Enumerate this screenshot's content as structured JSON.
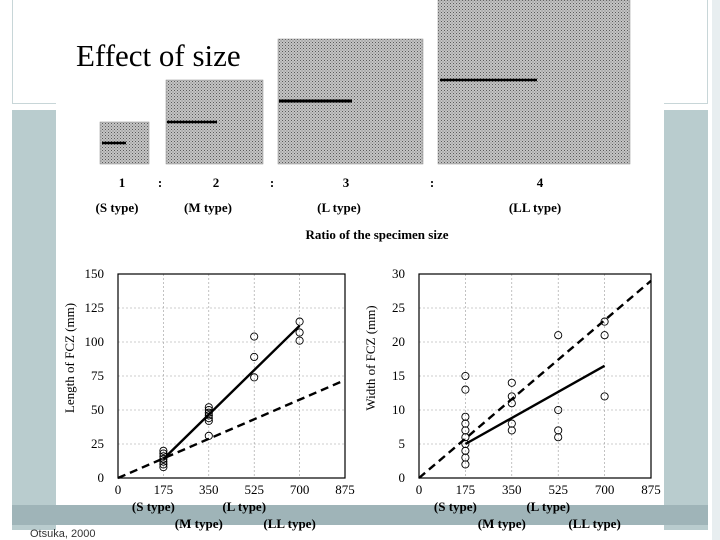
{
  "slide": {
    "title": "Effect of size",
    "credit": "Otsuka, 2000"
  },
  "specimens": {
    "ratios": [
      "1",
      "2",
      "3",
      "4"
    ],
    "separator": ":",
    "types": [
      "(S type)",
      "(M type)",
      "(L type)",
      "(LL type)"
    ],
    "caption": "Ratio of the specimen size"
  },
  "chart_data": [
    {
      "type": "scatter",
      "ylabel": "Length of FCZ (mm)",
      "xlim": [
        0,
        875
      ],
      "ylim": [
        0,
        150
      ],
      "x_ticks": [
        "0",
        "175",
        "350",
        "525",
        "700",
        "875"
      ],
      "y_ticks": [
        "0",
        "25",
        "50",
        "75",
        "100",
        "125",
        "150"
      ],
      "type_labels": [
        "(S type)",
        "(L type)",
        "(M type)",
        "(LL type)"
      ],
      "points": [
        [
          175,
          8
        ],
        [
          175,
          10
        ],
        [
          175,
          12
        ],
        [
          175,
          14
        ],
        [
          175,
          16
        ],
        [
          175,
          18
        ],
        [
          175,
          20
        ],
        [
          350,
          31
        ],
        [
          350,
          42
        ],
        [
          350,
          44
        ],
        [
          350,
          46
        ],
        [
          350,
          48
        ],
        [
          350,
          50
        ],
        [
          350,
          52
        ],
        [
          525,
          74
        ],
        [
          525,
          89
        ],
        [
          525,
          104
        ],
        [
          700,
          101
        ],
        [
          700,
          107
        ],
        [
          700,
          115
        ]
      ],
      "fit_solid": [
        [
          175,
          14
        ],
        [
          700,
          112
        ]
      ],
      "fit_dashed": [
        [
          0,
          0
        ],
        [
          875,
          72
        ]
      ]
    },
    {
      "type": "scatter",
      "ylabel": "Width of FCZ (mm)",
      "xlim": [
        0,
        875
      ],
      "ylim": [
        0,
        30
      ],
      "x_ticks": [
        "0",
        "175",
        "350",
        "525",
        "700",
        "875"
      ],
      "y_ticks": [
        "0",
        "5",
        "10",
        "15",
        "20",
        "25",
        "30"
      ],
      "type_labels": [
        "(S type)",
        "(L type)",
        "(M type)",
        "(LL type)"
      ],
      "points": [
        [
          175,
          2
        ],
        [
          175,
          3
        ],
        [
          175,
          4
        ],
        [
          175,
          5
        ],
        [
          175,
          6
        ],
        [
          175,
          7
        ],
        [
          175,
          8
        ],
        [
          175,
          9
        ],
        [
          175,
          13
        ],
        [
          175,
          15
        ],
        [
          350,
          7
        ],
        [
          350,
          8
        ],
        [
          350,
          11
        ],
        [
          350,
          12
        ],
        [
          350,
          14
        ],
        [
          525,
          6
        ],
        [
          525,
          7
        ],
        [
          525,
          10
        ],
        [
          525,
          21
        ],
        [
          700,
          12
        ],
        [
          700,
          21
        ],
        [
          700,
          23
        ]
      ],
      "fit_solid": [
        [
          175,
          5
        ],
        [
          700,
          16.5
        ]
      ],
      "fit_dashed": [
        [
          0,
          0
        ],
        [
          875,
          29
        ]
      ]
    }
  ]
}
